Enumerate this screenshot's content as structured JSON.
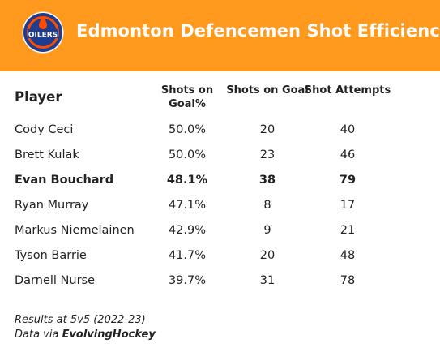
{
  "header": {
    "title": "Edmonton Defencemen Shot Efficiency",
    "logo_text": "OILERS",
    "colors": {
      "background": "#FF9A1E",
      "logo_blue": "#1F3D8C",
      "logo_orange": "#FF4C00"
    }
  },
  "table": {
    "columns": [
      "Player",
      "Shots on Goal%",
      "Shots on Goal",
      "Shot Attempts"
    ],
    "rows": [
      {
        "player": "Cody Ceci",
        "sog_pct": "50.0%",
        "sog": "20",
        "attempts": "40",
        "highlight": false
      },
      {
        "player": "Brett Kulak",
        "sog_pct": "50.0%",
        "sog": "23",
        "attempts": "46",
        "highlight": false
      },
      {
        "player": "Evan Bouchard",
        "sog_pct": "48.1%",
        "sog": "38",
        "attempts": "79",
        "highlight": true
      },
      {
        "player": "Ryan Murray",
        "sog_pct": "47.1%",
        "sog": "8",
        "attempts": "17",
        "highlight": false
      },
      {
        "player": "Markus Niemelainen",
        "sog_pct": "42.9%",
        "sog": "9",
        "attempts": "21",
        "highlight": false
      },
      {
        "player": "Tyson Barrie",
        "sog_pct": "41.7%",
        "sog": "20",
        "attempts": "48",
        "highlight": false
      },
      {
        "player": "Darnell Nurse",
        "sog_pct": "39.7%",
        "sog": "31",
        "attempts": "78",
        "highlight": false
      }
    ]
  },
  "footer": {
    "line1": "Results at 5v5 (2022-23)",
    "line2_prefix": "Data via ",
    "line2_source": "EvolvingHockey"
  }
}
